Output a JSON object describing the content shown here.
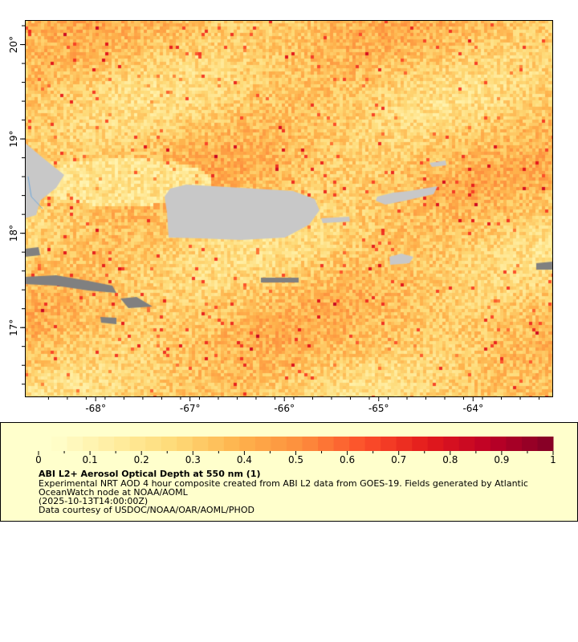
{
  "map": {
    "lon_range": [
      -68.75,
      -63.16
    ],
    "lat_range": [
      16.27,
      20.26
    ],
    "x_ticks": [
      -68,
      -67,
      -66,
      -65,
      -64
    ],
    "x_tick_labels": [
      "-68°",
      "-67°",
      "-66°",
      "-65°",
      "-64°"
    ],
    "y_ticks": [
      17,
      18,
      19,
      20
    ],
    "y_tick_labels": [
      "17°",
      "18°",
      "19°",
      "20°"
    ],
    "land_color": "#c8c8c8",
    "nodata_color": "#808080",
    "river_color": "#6fa8dc"
  },
  "legend": {
    "colorbar_range": [
      0,
      1
    ],
    "tick_labels": [
      "0",
      "0.1",
      "0.2",
      "0.3",
      "0.4",
      "0.5",
      "0.6",
      "0.7",
      "0.8",
      "0.9",
      "1"
    ],
    "palette": [
      "#ffffcc",
      "#ffeda0",
      "#fed976",
      "#feb24c",
      "#fd8d3c",
      "#fc4e2a",
      "#e31a1c",
      "#bd0026",
      "#800026"
    ],
    "title": "ABI L2+ Aerosol Optical Depth at 550 nm (1)",
    "description_line1": "Experimental NRT AOD 4 hour composite created from ABI L2 data from GOES-19. Fields generated by Atlantic",
    "description_line2": "OceanWatch node at NOAA/AOML",
    "time": "(2025-10-13T14:00:00Z)",
    "credit": "Data courtesy of USDOC/NOAA/OAR/AOML/PHOD"
  }
}
